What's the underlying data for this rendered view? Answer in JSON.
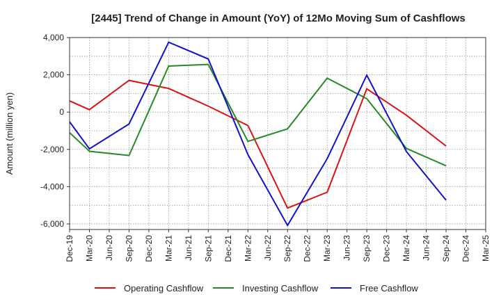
{
  "chart_data": {
    "type": "line",
    "title": "[2445]  Trend of Change in Amount (YoY) of 12Mo Moving Sum of Cashflows",
    "xlabel": "",
    "ylabel": "Amount (million yen)",
    "ylim": [
      -6300,
      4000
    ],
    "yticks": [
      4000,
      2000,
      0,
      -2000,
      -4000,
      -6000
    ],
    "ytick_labels": [
      "4,000",
      "2,000",
      "0",
      "-2,000",
      "-4,000",
      "-6,000"
    ],
    "grid": true,
    "legend_position": "bottom",
    "categories": [
      "Dec-19",
      "Mar-20",
      "Jun-20",
      "Sep-20",
      "Dec-20",
      "Mar-21",
      "Jun-21",
      "Sep-21",
      "Dec-21",
      "Mar-22",
      "Jun-22",
      "Sep-22",
      "Dec-22",
      "Mar-23",
      "Jun-23",
      "Sep-23",
      "Dec-23",
      "Mar-24",
      "Jun-24",
      "Sep-24",
      "Dec-24",
      "Mar-25"
    ],
    "series": [
      {
        "name": "Operating Cashflow",
        "color": "#dd1111",
        "values": [
          600,
          130,
          null,
          1700,
          null,
          1270,
          null,
          320,
          null,
          -720,
          null,
          -5150,
          null,
          -4300,
          null,
          1250,
          null,
          -170,
          null,
          -1820,
          null,
          null
        ]
      },
      {
        "name": "Investing Cashflow",
        "color": "#228b22",
        "values": [
          -1100,
          -2100,
          null,
          -2330,
          null,
          2470,
          null,
          2560,
          null,
          -1570,
          null,
          -900,
          null,
          1820,
          null,
          720,
          null,
          -1950,
          null,
          -2880,
          null,
          null
        ]
      },
      {
        "name": "Free Cashflow",
        "color": "#1111cc",
        "values": [
          -520,
          -1970,
          null,
          -640,
          null,
          3750,
          null,
          2850,
          null,
          -2280,
          null,
          -6080,
          null,
          -2500,
          null,
          1980,
          null,
          -2120,
          null,
          -4720,
          null,
          null
        ]
      }
    ]
  }
}
